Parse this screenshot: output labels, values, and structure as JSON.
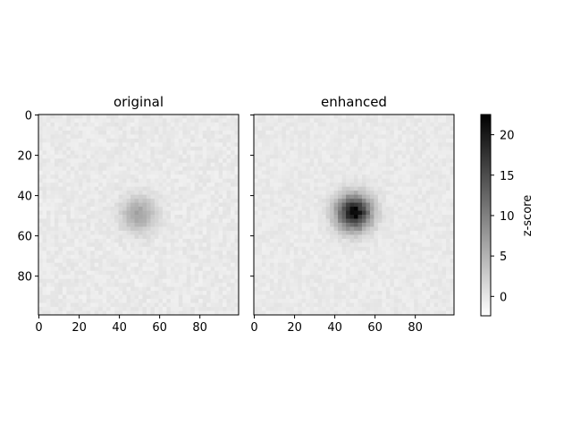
{
  "chart_data": [
    {
      "type": "heatmap",
      "title": "original",
      "xlabel": "",
      "ylabel": "",
      "xlim": [
        0,
        99
      ],
      "ylim": [
        99,
        0
      ],
      "xticks": [
        0,
        20,
        40,
        60,
        80
      ],
      "yticks": [
        0,
        20,
        40,
        60,
        80
      ],
      "blob": {
        "center": [
          50,
          50
        ],
        "radius": 6,
        "peak_zscore": 7
      }
    },
    {
      "type": "heatmap",
      "title": "enhanced",
      "xlabel": "",
      "ylabel": "",
      "xlim": [
        0,
        99
      ],
      "ylim": [
        99,
        0
      ],
      "xticks": [
        0,
        20,
        40,
        60,
        80
      ],
      "yticks": [],
      "blob": {
        "center": [
          50,
          49
        ],
        "radius": 6,
        "peak_zscore": 22
      }
    }
  ],
  "colorbar": {
    "label": "z-score",
    "colormap": "gray_r",
    "range": [
      -2.4,
      22.5
    ],
    "ticks": [
      0,
      5,
      10,
      15,
      20
    ],
    "color_low": "#ffffff",
    "color_high": "#000000"
  }
}
